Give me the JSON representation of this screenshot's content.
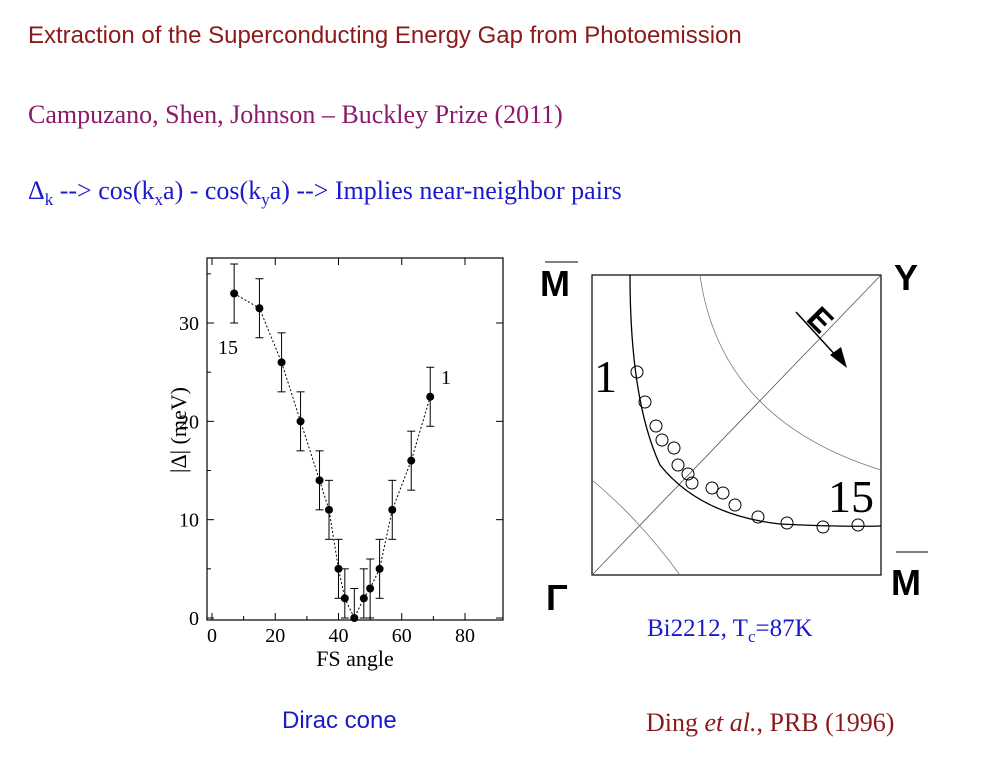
{
  "title": "Extraction of the Superconducting Energy Gap from Photoemission",
  "credit": "Campuzano,  Shen, Johnson – Buckley Prize (2011)",
  "formula": {
    "delta": "Δ",
    "delta_sub": "k",
    "part1": " --> cos(k",
    "sub_x": "x",
    "part2": "a) - cos(k",
    "sub_y": "y",
    "part3": "a)  -->  Implies near-neighbor pairs"
  },
  "sample": {
    "prefix": "Bi2212, T",
    "sub": "c",
    "suffix": "=87K"
  },
  "caption_left": "Dirac cone",
  "reference": {
    "author": "Ding ",
    "etal": "et al.",
    "rest": ", PRB (1996)"
  },
  "colors": {
    "title": "#8B1A1A",
    "credit": "#8B1A6B",
    "blue": "#1a1acc"
  },
  "bz": {
    "labels": {
      "m_top": "M",
      "y": "Y",
      "gamma": "Γ",
      "m_right": "M",
      "e": "E",
      "start": "1",
      "end": "15"
    }
  },
  "chart_data": {
    "type": "scatter",
    "title": "",
    "xlabel": "FS angle",
    "ylabel": "|Δ| (meV)",
    "xlim": [
      0,
      90
    ],
    "ylim": [
      0,
      36
    ],
    "xticks": [
      0,
      20,
      40,
      60,
      80
    ],
    "yticks": [
      0,
      10,
      20,
      30
    ],
    "annotations": [
      "15",
      "1"
    ],
    "series": [
      {
        "x": [
          7,
          15,
          22,
          28,
          34,
          37,
          40,
          42,
          45,
          48,
          50,
          53,
          57,
          63,
          69
        ],
        "y": [
          33,
          31.5,
          26,
          20,
          14,
          11,
          5,
          2,
          0,
          2,
          3,
          5,
          11,
          16,
          22.5
        ],
        "err": [
          3,
          3,
          3,
          3,
          3,
          3,
          3,
          3,
          3,
          3,
          3,
          3,
          3,
          3,
          3
        ]
      }
    ]
  }
}
